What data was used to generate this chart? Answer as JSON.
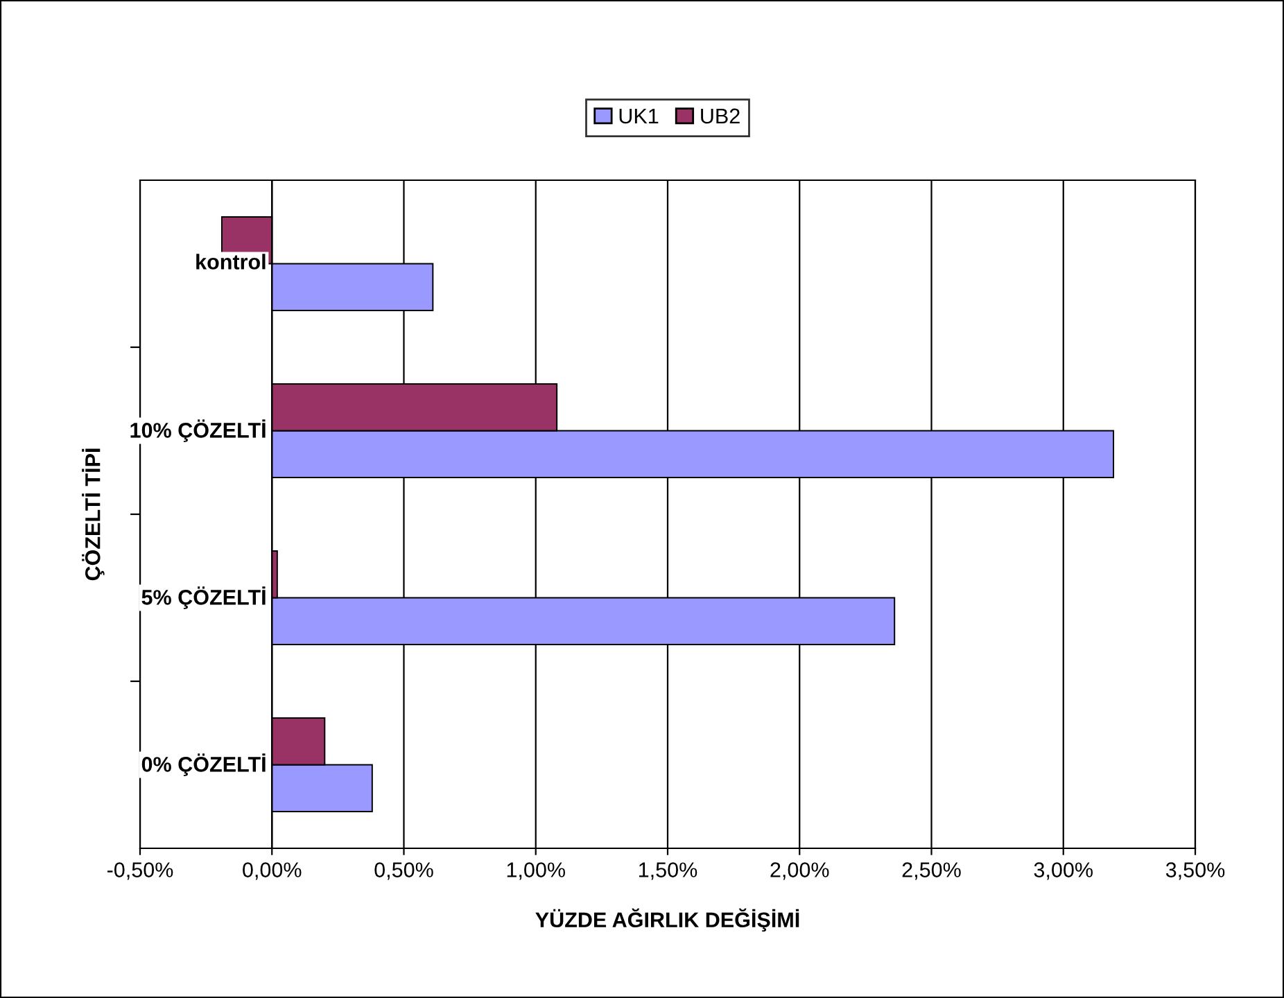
{
  "chart_data": {
    "type": "bar",
    "orientation": "horizontal",
    "xlabel": "YÜZDE AĞIRLIK DEĞİŞİMİ",
    "ylabel": "ÇÖZELTİ TİPİ",
    "categories": [
      "kontrol",
      "10% ÇÖZELTİ",
      "5% ÇÖZELTİ",
      "0% ÇÖZELTİ"
    ],
    "series": [
      {
        "name": "UK1",
        "color": "#9999ff",
        "values": [
          0.61,
          3.19,
          2.36,
          0.38
        ]
      },
      {
        "name": "UB2",
        "color": "#993366",
        "values": [
          -0.19,
          1.08,
          0.02,
          0.2
        ]
      }
    ],
    "xlim": [
      -0.5,
      3.5
    ],
    "xticks": [
      {
        "value": -0.5,
        "label": "-0,50%"
      },
      {
        "value": 0,
        "label": "0,00%"
      },
      {
        "value": 0.5,
        "label": "0,50%"
      },
      {
        "value": 1,
        "label": "1,00%"
      },
      {
        "value": 1.5,
        "label": "1,50%"
      },
      {
        "value": 2,
        "label": "2,00%"
      },
      {
        "value": 2.5,
        "label": "2,50%"
      },
      {
        "value": 3,
        "label": "3,00%"
      },
      {
        "value": 3.5,
        "label": "3,50%"
      }
    ],
    "grid": "x",
    "legend": "top"
  }
}
